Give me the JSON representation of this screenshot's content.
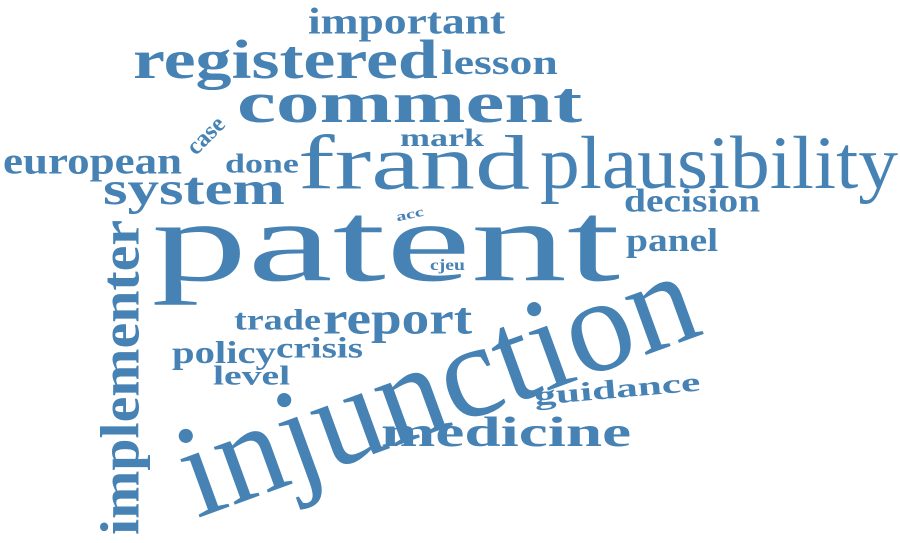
{
  "word_cloud": {
    "color": "#4682B4",
    "background": "#ffffff",
    "words": [
      {
        "text": "patent"
      },
      {
        "text": "injunction"
      },
      {
        "text": "frand"
      },
      {
        "text": "plausibility"
      },
      {
        "text": "comment"
      },
      {
        "text": "registered"
      },
      {
        "text": "medicine"
      },
      {
        "text": "implementer"
      },
      {
        "text": "system"
      },
      {
        "text": "report"
      },
      {
        "text": "important"
      },
      {
        "text": "european"
      },
      {
        "text": "guidance"
      },
      {
        "text": "decision"
      },
      {
        "text": "lesson"
      },
      {
        "text": "panel"
      },
      {
        "text": "done"
      },
      {
        "text": "policy"
      },
      {
        "text": "crisis"
      },
      {
        "text": "trade"
      },
      {
        "text": "mark"
      },
      {
        "text": "case"
      },
      {
        "text": "level"
      },
      {
        "text": "acc"
      },
      {
        "text": "cjeu"
      }
    ]
  }
}
